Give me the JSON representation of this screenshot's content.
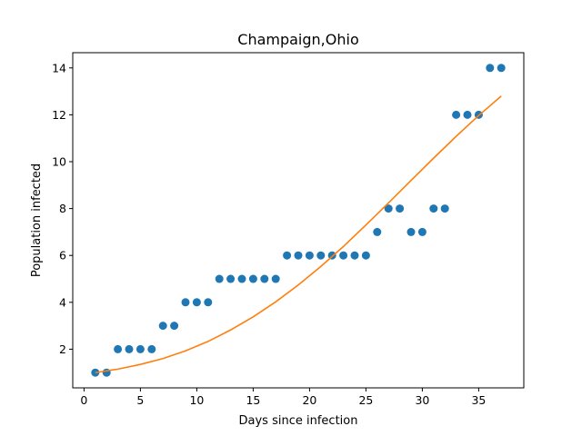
{
  "chart_data": {
    "type": "scatter",
    "title": "Champaign,Ohio",
    "xlabel": "Days since infection",
    "ylabel": "Population infected",
    "xlim": [
      -1,
      39
    ],
    "ylim": [
      0.35,
      14.65
    ],
    "xticks": [
      0,
      5,
      10,
      15,
      20,
      25,
      30,
      35
    ],
    "yticks": [
      2,
      4,
      6,
      8,
      10,
      12,
      14
    ],
    "grid": false,
    "colors": {
      "points": "#1f77b4",
      "fit": "#ff7f0e"
    },
    "series": [
      {
        "kind": "scatter",
        "x": [
          1,
          2,
          3,
          4,
          5,
          6,
          7,
          8,
          9,
          10,
          11,
          12,
          13,
          14,
          15,
          16,
          17,
          18,
          19,
          20,
          21,
          22,
          23,
          24,
          25,
          26,
          27,
          28,
          29,
          30,
          31,
          32,
          33,
          34,
          35,
          36,
          37
        ],
        "y": [
          1,
          1,
          2,
          2,
          2,
          2,
          3,
          3,
          4,
          4,
          4,
          5,
          5,
          5,
          5,
          5,
          5,
          6,
          6,
          6,
          6,
          6,
          6,
          6,
          6,
          7,
          8,
          8,
          7,
          7,
          8,
          8,
          12,
          12,
          12,
          14,
          14
        ]
      },
      {
        "kind": "line",
        "x": [
          1,
          3,
          5,
          7,
          9,
          11,
          13,
          15,
          17,
          19,
          21,
          23,
          25,
          27,
          29,
          31,
          33,
          35,
          37
        ],
        "y": [
          1.0,
          1.15,
          1.35,
          1.6,
          1.93,
          2.33,
          2.82,
          3.38,
          4.02,
          4.74,
          5.53,
          6.38,
          7.3,
          8.24,
          9.2,
          10.15,
          11.08,
          11.97,
          12.8
        ]
      }
    ]
  }
}
